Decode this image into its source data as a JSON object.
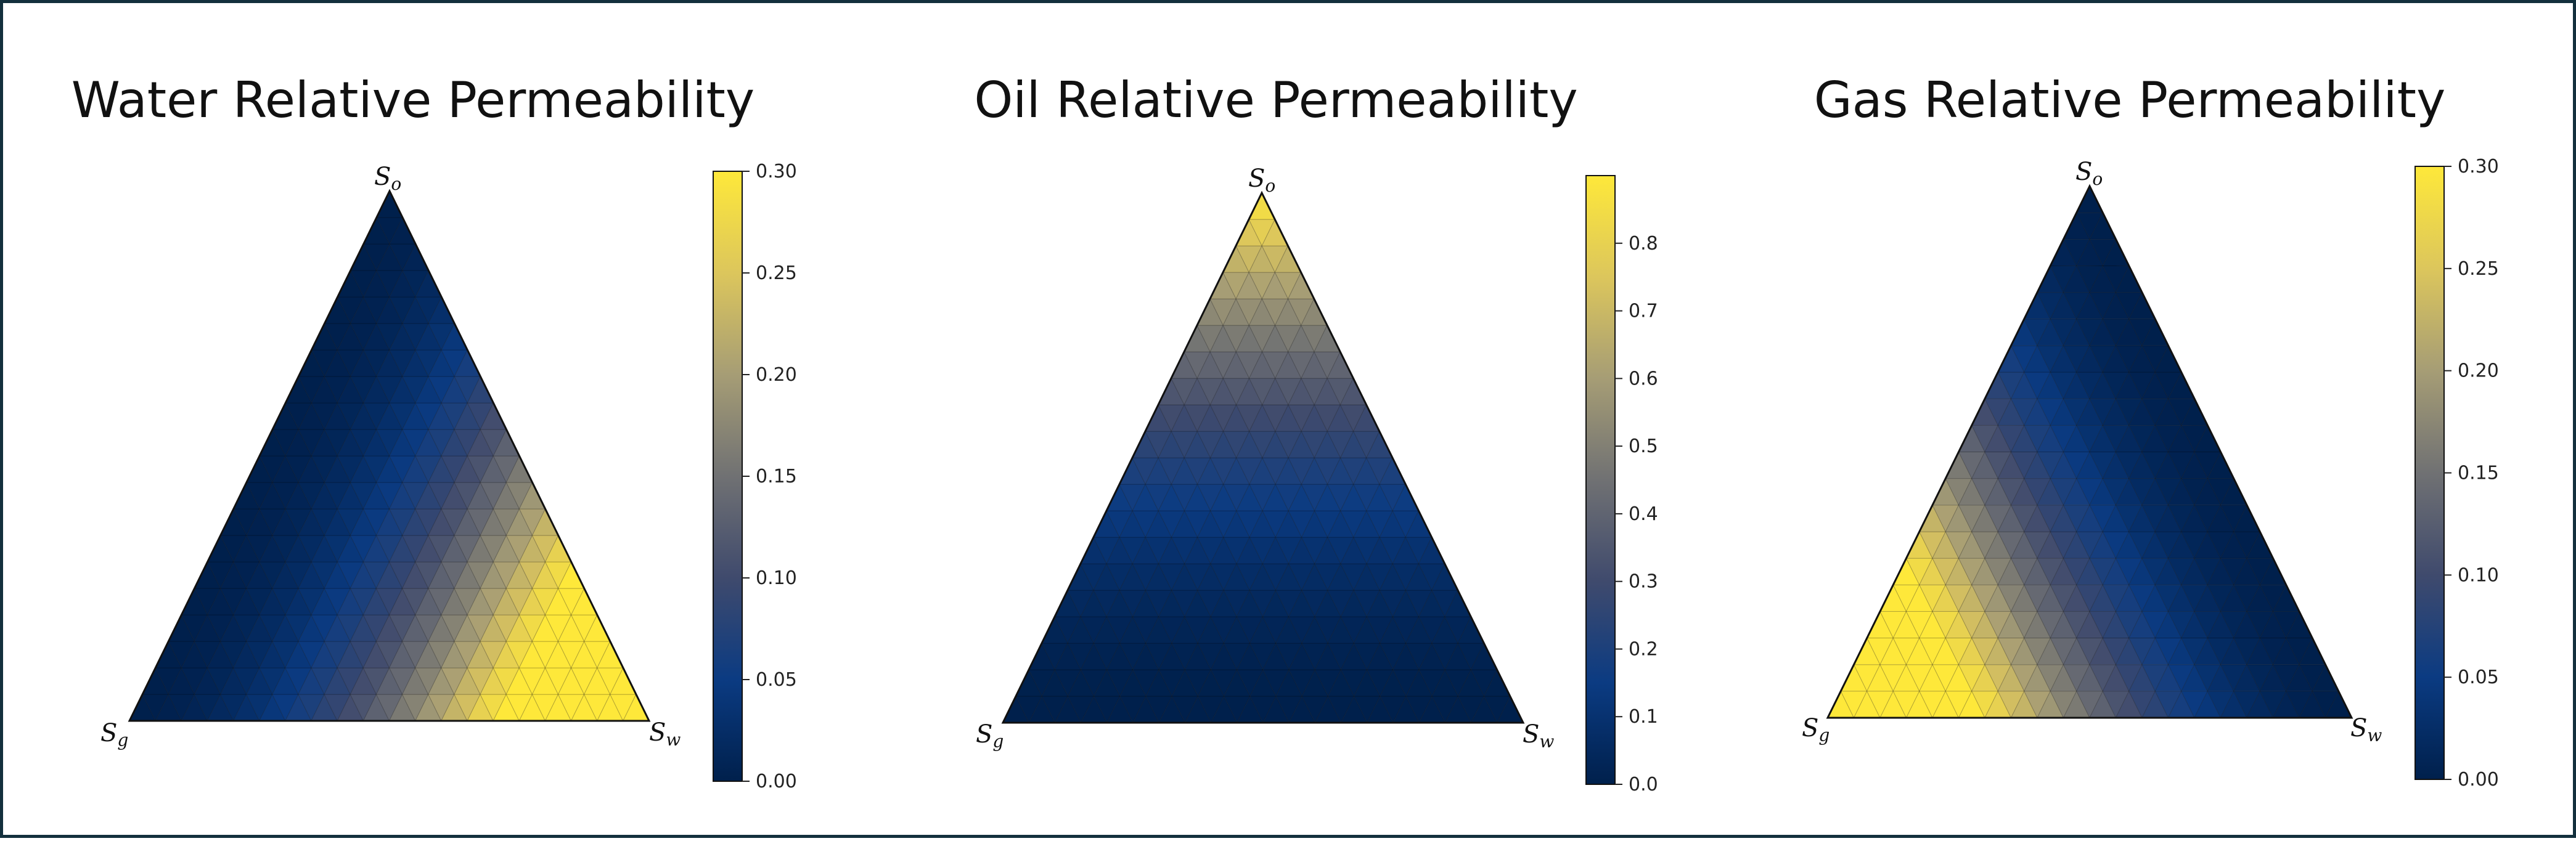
{
  "colors": {
    "frame": "#13303d",
    "colormap": [
      "#00204c",
      "#0b3b82",
      "#3f4a6d",
      "#707173",
      "#a69d75",
      "#dcc65c",
      "#fee83a"
    ],
    "triangle_edge": "#111111"
  },
  "chart_data": [
    {
      "type": "heatmap",
      "subtype": "ternary",
      "title": "Water Relative Permeability",
      "vertex_labels": {
        "top": "S",
        "top_sub": "o",
        "left": "S",
        "left_sub": "g",
        "right": "S",
        "right_sub": "w"
      },
      "model": {
        "driver": "Sw",
        "shape": "power",
        "exponent": 2,
        "scale": 0.6
      },
      "colorbar": {
        "vmin": 0.0,
        "vmax": 0.3,
        "ticks": [
          0.0,
          0.05,
          0.1,
          0.15,
          0.2,
          0.25,
          0.3
        ],
        "tick_labels": [
          "0.00",
          "0.05",
          "0.10",
          "0.15",
          "0.20",
          "0.25",
          "0.30"
        ]
      },
      "grid_divisions": 20
    },
    {
      "type": "heatmap",
      "subtype": "ternary",
      "title": "Oil Relative Permeability",
      "vertex_labels": {
        "top": "S",
        "top_sub": "o",
        "left": "S",
        "left_sub": "g",
        "right": "S",
        "right_sub": "w"
      },
      "model": {
        "driver": "So",
        "shape": "power",
        "exponent": 2,
        "scale": 0.9
      },
      "colorbar": {
        "vmin": 0.0,
        "vmax": 0.9,
        "ticks": [
          0.0,
          0.1,
          0.2,
          0.3,
          0.4,
          0.5,
          0.6,
          0.7,
          0.8
        ],
        "tick_labels": [
          "0.0",
          "0.1",
          "0.2",
          "0.3",
          "0.4",
          "0.5",
          "0.6",
          "0.7",
          "0.8"
        ]
      },
      "grid_divisions": 20
    },
    {
      "type": "heatmap",
      "subtype": "ternary",
      "title": "Gas Relative Permeability",
      "vertex_labels": {
        "top": "S",
        "top_sub": "o",
        "left": "S",
        "left_sub": "g",
        "right": "S",
        "right_sub": "w"
      },
      "model": {
        "driver": "Sg",
        "shape": "power",
        "exponent": 2,
        "scale": 0.6
      },
      "colorbar": {
        "vmin": 0.0,
        "vmax": 0.3,
        "ticks": [
          0.0,
          0.05,
          0.1,
          0.15,
          0.2,
          0.25,
          0.3
        ],
        "tick_labels": [
          "0.00",
          "0.05",
          "0.10",
          "0.15",
          "0.20",
          "0.25",
          "0.30"
        ]
      },
      "grid_divisions": 20
    }
  ]
}
